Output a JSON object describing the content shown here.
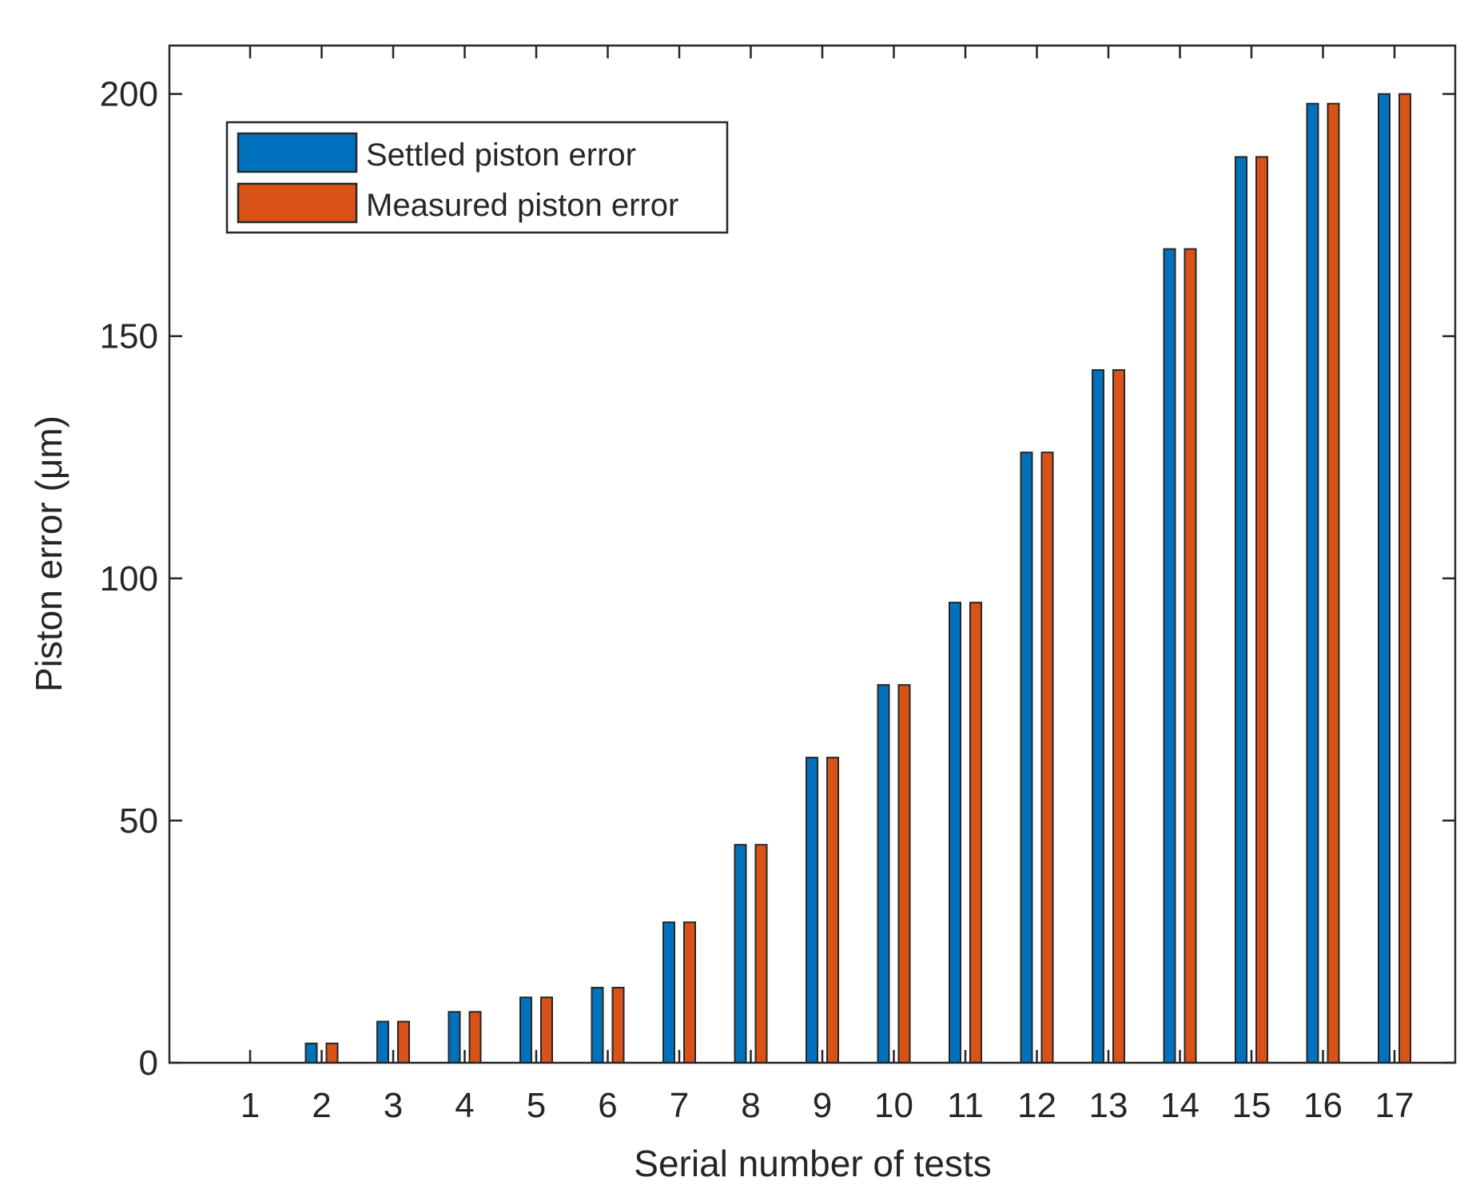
{
  "chart_data": {
    "type": "bar",
    "title": "",
    "xlabel": "Serial number of tests",
    "ylabel": "Piston error (μm)",
    "categories": [
      "1",
      "2",
      "3",
      "4",
      "5",
      "6",
      "7",
      "8",
      "9",
      "10",
      "11",
      "12",
      "13",
      "14",
      "15",
      "16",
      "17"
    ],
    "ylim": [
      0,
      210
    ],
    "yticks": [
      0,
      50,
      100,
      150,
      200
    ],
    "ytick_labels": [
      "0",
      "50",
      "100",
      "150",
      "200"
    ],
    "grid": false,
    "legend_position": "top-left",
    "series": [
      {
        "name": "Settled piston error",
        "color": "#0072BD",
        "values": [
          0,
          4,
          8.5,
          10.5,
          13.5,
          15.5,
          29,
          45,
          63,
          78,
          95,
          126,
          143,
          168,
          187,
          198,
          200
        ]
      },
      {
        "name": "Measured piston error",
        "color": "#D95319",
        "values": [
          0,
          4,
          8.5,
          10.5,
          13.5,
          15.5,
          29,
          45,
          63,
          78,
          95,
          126,
          143,
          168,
          187,
          198,
          200
        ]
      }
    ]
  }
}
